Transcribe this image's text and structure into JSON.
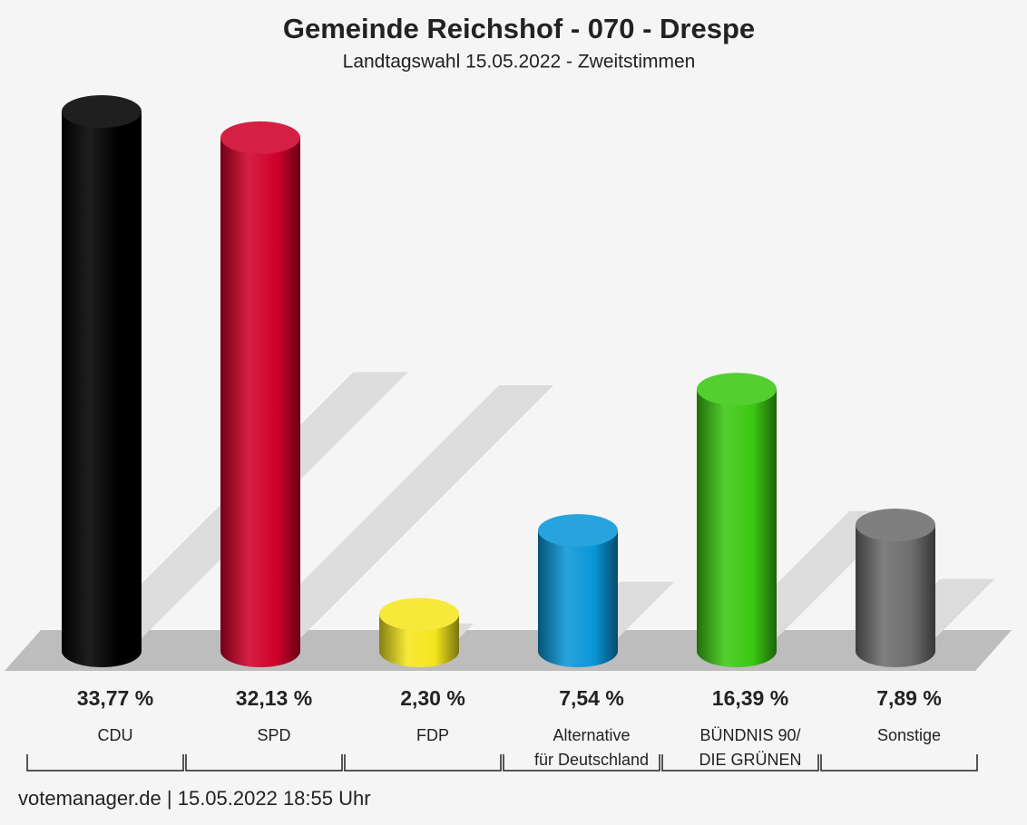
{
  "chart_data": {
    "type": "bar",
    "title": "Gemeinde Reichshof - 070 - Drespe",
    "subtitle": "Landtagswahl 15.05.2022  - Zweitstimmen",
    "categories": [
      [
        "CDU"
      ],
      [
        "SPD"
      ],
      [
        "FDP"
      ],
      [
        "Alternative",
        "für Deutschland"
      ],
      [
        "BÜNDNIS 90/",
        "DIE GRÜNEN"
      ],
      [
        "Sonstige"
      ]
    ],
    "values": [
      33.77,
      32.13,
      2.3,
      7.54,
      16.39,
      7.89
    ],
    "value_labels": [
      "33,77 %",
      "32,13 %",
      "2,30 %",
      "7,54 %",
      "16,39 %",
      "7,89 %"
    ],
    "colors": [
      "#000000",
      "#d0002a",
      "#f5e61e",
      "#0a96d8",
      "#3cc814",
      "#6e6e6e"
    ],
    "footer": "votemanager.de | 15.05.2022 18:55 Uhr"
  }
}
